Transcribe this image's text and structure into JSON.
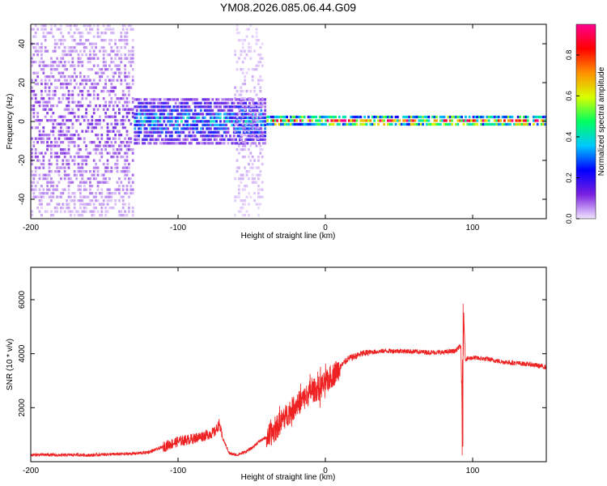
{
  "figure": {
    "title": "YM08.2026.085.06.44.G09"
  },
  "chart_data": [
    {
      "type": "heatmap",
      "xlabel": "Height of straight line (km)",
      "ylabel": "Frequency (Hz)",
      "xlim": [
        -200,
        150
      ],
      "ylim": [
        -50,
        50
      ],
      "xticks": [
        -200,
        -100,
        0,
        100
      ],
      "yticks": [
        -40,
        -20,
        0,
        20,
        40
      ],
      "colorbar": {
        "label": "Normalized spectral amplitude",
        "range": [
          0.0,
          0.95
        ],
        "ticks": [
          0.0,
          0.2,
          0.4,
          0.6,
          0.8
        ],
        "colormap": [
          "#f2e6ff",
          "#7a1fe0",
          "#0000ff",
          "#00c8ff",
          "#00ff60",
          "#d8ff00",
          "#ff9000",
          "#ff0000",
          "#ff0090"
        ]
      },
      "regions": [
        {
          "x": [
            -200,
            -130
          ],
          "freq_spread_hz": 50,
          "amplitude": 0.12,
          "note": "broadband noise"
        },
        {
          "x": [
            -130,
            -40
          ],
          "freq_spread_hz": 12,
          "amplitude": 0.35
        },
        {
          "x": [
            -62,
            -42
          ],
          "freq_spread_hz": 50,
          "amplitude": 0.05
        },
        {
          "x": [
            -40,
            150
          ],
          "freq_spread_hz": 3,
          "amplitude": 0.85
        }
      ]
    },
    {
      "type": "line",
      "xlabel": "Height of straight line (km)",
      "ylabel": "SNR (10 * v/v)",
      "xlim": [
        -200,
        150
      ],
      "ylim": [
        0,
        7200
      ],
      "xticks": [
        -200,
        -100,
        0,
        100
      ],
      "yticks": [
        2000,
        4000,
        6000
      ],
      "color": "#ee2222",
      "series": [
        {
          "x": [
            -200,
            -190,
            -180,
            -170,
            -160,
            -150,
            -140,
            -130,
            -120,
            -110,
            -100,
            -90,
            -80,
            -75,
            -72,
            -70,
            -65,
            -60,
            -55,
            -50,
            -45,
            -40,
            -35,
            -30,
            -25,
            -20,
            -15,
            -10,
            -5,
            0,
            5,
            10,
            15,
            20,
            25,
            30,
            40,
            50,
            60,
            70,
            80,
            88,
            92,
            93,
            94,
            95,
            100,
            110,
            120,
            130,
            140,
            150
          ],
          "values": [
            250,
            260,
            240,
            260,
            240,
            270,
            280,
            300,
            350,
            550,
            750,
            850,
            1000,
            1100,
            1400,
            900,
            300,
            250,
            350,
            500,
            750,
            900,
            1100,
            1500,
            1800,
            2100,
            2300,
            2600,
            2700,
            2900,
            3200,
            3500,
            3800,
            3900,
            4000,
            4050,
            4100,
            4100,
            4080,
            4050,
            4050,
            4100,
            4300,
            1100,
            5500,
            3800,
            3850,
            3800,
            3700,
            3650,
            3600,
            3500
          ]
        }
      ],
      "annotations": [
        {
          "x": 93,
          "y": 7200,
          "text": ""
        },
        {
          "x": 93,
          "y": 600,
          "text": ""
        }
      ]
    }
  ]
}
